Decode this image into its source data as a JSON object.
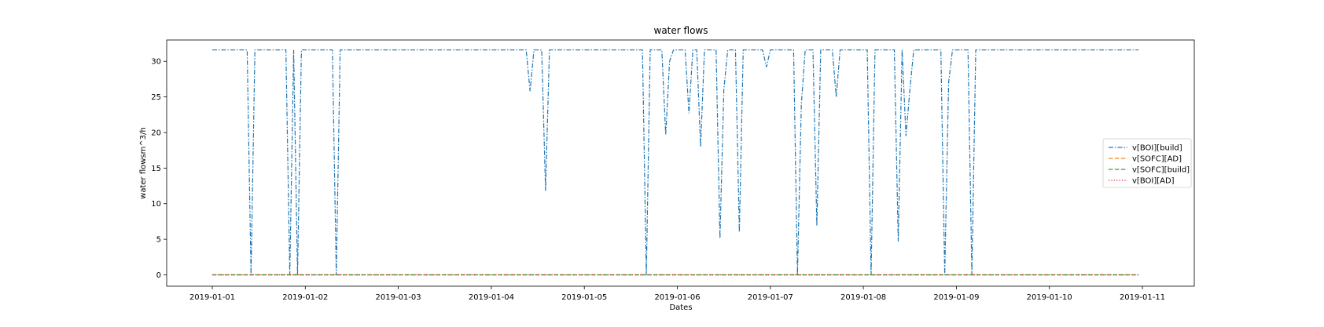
{
  "chart_data": {
    "type": "line",
    "title": "water flows",
    "xlabel": "Dates",
    "ylabel": "water flowsm^3/h",
    "xlim": [
      "2019-01-01",
      "2019-01-11"
    ],
    "x_ticks": [
      "2019-01-01",
      "2019-01-02",
      "2019-01-03",
      "2019-01-04",
      "2019-01-05",
      "2019-01-06",
      "2019-01-07",
      "2019-01-08",
      "2019-01-09",
      "2019-01-10",
      "2019-01-11"
    ],
    "ylim": [
      -1.6,
      33.0
    ],
    "y_ticks": [
      0,
      5,
      10,
      15,
      20,
      25,
      30
    ],
    "legend_position": "center-right",
    "series": [
      {
        "name": "v[BOI][build]",
        "color": "#1f77b4",
        "dash": "dashdot",
        "points": [
          [
            "2019-01-01 00:00",
            31.6
          ],
          [
            "2019-01-01 09:00",
            31.6
          ],
          [
            "2019-01-01 10:00",
            0.0
          ],
          [
            "2019-01-01 11:00",
            31.6
          ],
          [
            "2019-01-01 19:00",
            31.6
          ],
          [
            "2019-01-01 20:00",
            0.0
          ],
          [
            "2019-01-01 21:00",
            31.6
          ],
          [
            "2019-01-01 22:00",
            0.0
          ],
          [
            "2019-01-01 23:00",
            31.6
          ],
          [
            "2019-01-02 07:00",
            31.6
          ],
          [
            "2019-01-02 08:00",
            0.0
          ],
          [
            "2019-01-02 09:00",
            31.6
          ],
          [
            "2019-01-04 09:00",
            31.6
          ],
          [
            "2019-01-04 10:00",
            25.8
          ],
          [
            "2019-01-04 11:00",
            31.6
          ],
          [
            "2019-01-04 13:00",
            31.6
          ],
          [
            "2019-01-04 14:00",
            11.8
          ],
          [
            "2019-01-04 15:00",
            31.6
          ],
          [
            "2019-01-05 15:00",
            31.6
          ],
          [
            "2019-01-05 16:00",
            0.0
          ],
          [
            "2019-01-05 17:00",
            31.6
          ],
          [
            "2019-01-05 20:00",
            31.6
          ],
          [
            "2019-01-05 21:00",
            19.7
          ],
          [
            "2019-01-05 22:00",
            30.0
          ],
          [
            "2019-01-05 23:00",
            31.6
          ],
          [
            "2019-01-06 02:00",
            31.6
          ],
          [
            "2019-01-06 03:00",
            22.7
          ],
          [
            "2019-01-06 04:00",
            31.6
          ],
          [
            "2019-01-06 05:00",
            31.6
          ],
          [
            "2019-01-06 06:00",
            18.0
          ],
          [
            "2019-01-06 07:00",
            31.6
          ],
          [
            "2019-01-06 10:00",
            31.6
          ],
          [
            "2019-01-06 11:00",
            5.1
          ],
          [
            "2019-01-06 12:00",
            26.0
          ],
          [
            "2019-01-06 13:00",
            31.6
          ],
          [
            "2019-01-06 15:00",
            31.6
          ],
          [
            "2019-01-06 16:00",
            6.0
          ],
          [
            "2019-01-06 17:00",
            31.6
          ],
          [
            "2019-01-06 22:00",
            31.6
          ],
          [
            "2019-01-06 23:00",
            29.2
          ],
          [
            "2019-01-07 00:00",
            31.6
          ],
          [
            "2019-01-07 06:00",
            31.6
          ],
          [
            "2019-01-07 07:00",
            0.0
          ],
          [
            "2019-01-07 08:00",
            24.0
          ],
          [
            "2019-01-07 09:00",
            31.6
          ],
          [
            "2019-01-07 11:00",
            31.6
          ],
          [
            "2019-01-07 12:00",
            6.9
          ],
          [
            "2019-01-07 13:00",
            31.6
          ],
          [
            "2019-01-07 16:00",
            31.6
          ],
          [
            "2019-01-07 17:00",
            25.0
          ],
          [
            "2019-01-07 18:00",
            31.6
          ],
          [
            "2019-01-08 01:00",
            31.6
          ],
          [
            "2019-01-08 02:00",
            0.0
          ],
          [
            "2019-01-08 03:00",
            31.6
          ],
          [
            "2019-01-08 08:00",
            31.6
          ],
          [
            "2019-01-08 09:00",
            4.7
          ],
          [
            "2019-01-08 10:00",
            31.6
          ],
          [
            "2019-01-08 11:00",
            19.5
          ],
          [
            "2019-01-08 12:00",
            26.0
          ],
          [
            "2019-01-08 13:00",
            31.6
          ],
          [
            "2019-01-08 20:00",
            31.6
          ],
          [
            "2019-01-08 21:00",
            0.0
          ],
          [
            "2019-01-08 22:00",
            27.0
          ],
          [
            "2019-01-08 23:00",
            31.6
          ],
          [
            "2019-01-09 03:00",
            31.6
          ],
          [
            "2019-01-09 04:00",
            0.0
          ],
          [
            "2019-01-09 05:00",
            31.6
          ],
          [
            "2019-01-10 23:00",
            31.6
          ]
        ]
      },
      {
        "name": "v[SOFC][AD]",
        "color": "#ff7f0e",
        "dash": "dashed",
        "points": [
          [
            "2019-01-01 00:00",
            0.0
          ],
          [
            "2019-01-10 23:00",
            0.0
          ]
        ]
      },
      {
        "name": "v[SOFC][build]",
        "color": "#2ca02c",
        "dash": "dashed",
        "points": [
          [
            "2019-01-01 00:00",
            0.0
          ],
          [
            "2019-01-10 23:00",
            0.0
          ]
        ]
      },
      {
        "name": "v[BOI][AD]",
        "color": "#d62728",
        "dash": "dotted",
        "points": [
          [
            "2019-01-01 00:00",
            0.0
          ],
          [
            "2019-01-10 23:00",
            0.0
          ]
        ]
      }
    ]
  }
}
